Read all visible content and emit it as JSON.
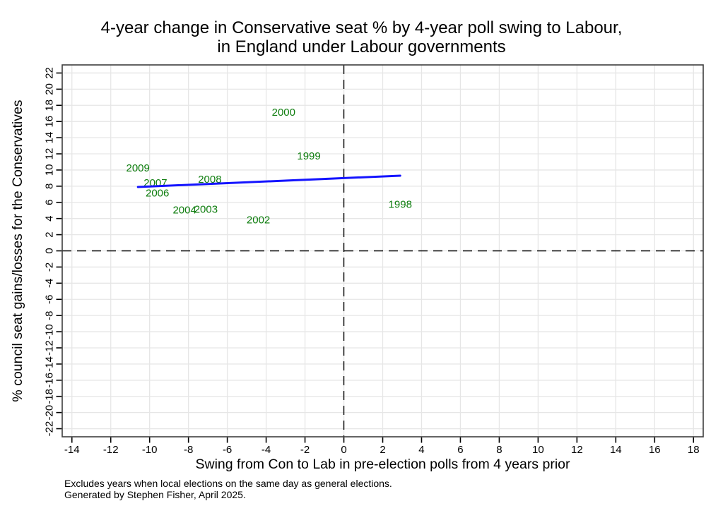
{
  "title": {
    "line1": "4-year change in Conservative seat % by 4-year poll swing to Labour,",
    "line2": "in England under Labour governments"
  },
  "notes": {
    "line1": "Excludes years when local elections on the same day as general elections.",
    "line2": "Generated by Stephen Fisher, April 2025."
  },
  "chart_data": {
    "type": "scatter",
    "title": "4-year change in Conservative seat % by 4-year poll swing to Labour, in England under Labour governments",
    "xlabel": "Swing from Con to Lab in pre-election polls from 4 years prior",
    "ylabel": "% council seat gains/losses for the Conservatives",
    "xlim": [
      -14.5,
      18.5
    ],
    "ylim": [
      -23,
      23
    ],
    "x_ticks": [
      -14,
      -12,
      -10,
      -8,
      -6,
      -4,
      -2,
      0,
      2,
      4,
      6,
      8,
      10,
      12,
      14,
      16,
      18
    ],
    "y_ticks": [
      -22,
      -20,
      -18,
      -16,
      -14,
      -12,
      -10,
      -8,
      -6,
      -4,
      -2,
      0,
      2,
      4,
      6,
      8,
      10,
      12,
      14,
      16,
      18,
      20,
      22
    ],
    "grid": true,
    "legend": "none",
    "points": [
      {
        "label": "1998",
        "x": 2.9,
        "y": 5.7
      },
      {
        "label": "1999",
        "x": -1.8,
        "y": 11.7
      },
      {
        "label": "2000",
        "x": -3.1,
        "y": 17.1
      },
      {
        "label": "2002",
        "x": -4.4,
        "y": 3.8
      },
      {
        "label": "2003",
        "x": -7.1,
        "y": 5.1
      },
      {
        "label": "2004",
        "x": -8.2,
        "y": 5.0
      },
      {
        "label": "2006",
        "x": -9.6,
        "y": 7.1
      },
      {
        "label": "2007",
        "x": -9.7,
        "y": 8.4
      },
      {
        "label": "2008",
        "x": -6.9,
        "y": 8.8
      },
      {
        "label": "2009",
        "x": -10.6,
        "y": 10.2
      }
    ],
    "fit_line": {
      "x1": -10.6,
      "y1": 7.9,
      "x2": 2.9,
      "y2": 9.3
    },
    "ref_lines": {
      "vertical_x": 0,
      "horizontal_y": 0
    },
    "colors": {
      "point_labels": "#0e7d0e",
      "fit_line": "#1414ff",
      "grid": "#e6e6e6",
      "border": "#3d3d3d",
      "ref_line": "#000000",
      "tick": "#000000"
    }
  }
}
